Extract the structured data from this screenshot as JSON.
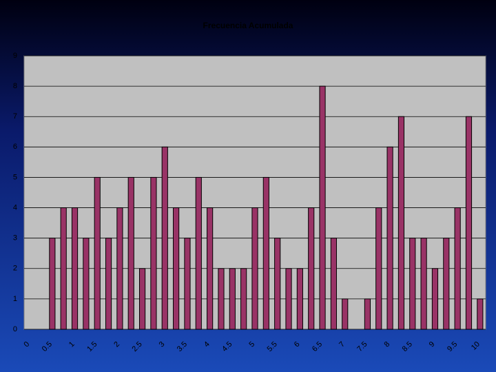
{
  "chart_data": {
    "type": "bar",
    "title": "Frecuencia Acumulada",
    "categories": [
      "0",
      null,
      "0.5",
      null,
      "1",
      null,
      "1.5",
      null,
      "2",
      null,
      "2.5",
      null,
      "3",
      null,
      "3.5",
      null,
      "4",
      null,
      "4.5",
      null,
      "5",
      null,
      "5.5",
      null,
      "6",
      null,
      "6.5",
      null,
      "7",
      null,
      "7.5",
      null,
      "8",
      null,
      "8.5",
      null,
      "9",
      null,
      "9.5",
      null,
      "10"
    ],
    "values": [
      0,
      0,
      3,
      4,
      4,
      3,
      5,
      3,
      4,
      5,
      2,
      5,
      6,
      4,
      3,
      5,
      4,
      2,
      2,
      2,
      4,
      5,
      3,
      2,
      2,
      4,
      8,
      3,
      1,
      0,
      1,
      4,
      6,
      7,
      3,
      3,
      2,
      3,
      4,
      7,
      1
    ],
    "color": "#993366",
    "ylim": [
      0,
      9
    ],
    "yticks": [
      0,
      1,
      2,
      3,
      4,
      5,
      6,
      7,
      8,
      9
    ],
    "grid": true
  }
}
